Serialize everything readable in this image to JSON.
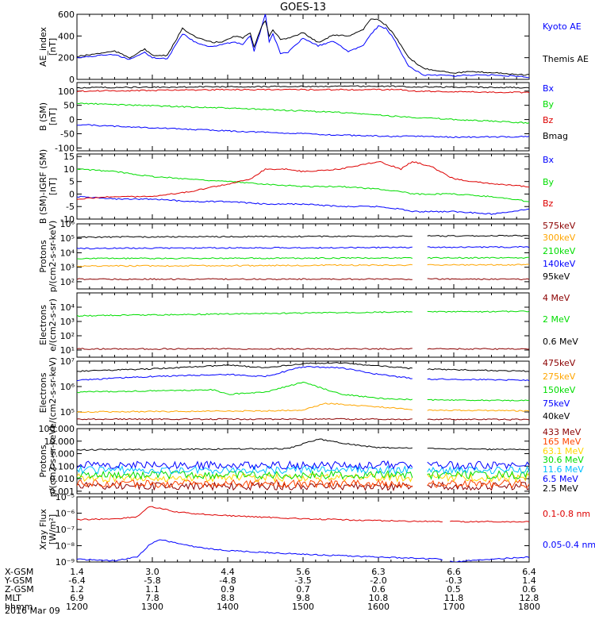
{
  "title": "GOES-13",
  "chart_data": [
    {
      "type": "line",
      "ylabel": "AE_index [nT]",
      "ylim": [
        0,
        600
      ],
      "yticks": [
        "0",
        "200",
        "400",
        "600"
      ],
      "series": [
        {
          "name": "Kyoto AE",
          "color": "#0000ff",
          "x": [
            12.0,
            12.3,
            12.5,
            12.7,
            12.9,
            13.0,
            13.2,
            13.4,
            13.6,
            13.8,
            13.95,
            14.1,
            14.2,
            14.3,
            14.35,
            14.45,
            14.5,
            14.55,
            14.6,
            14.7,
            14.8,
            15.0,
            15.2,
            15.4,
            15.6,
            15.8,
            15.9,
            16.0,
            16.1,
            16.2,
            16.4,
            16.6,
            16.8,
            17.0,
            17.2,
            17.4,
            17.6,
            17.8,
            18.0
          ],
          "values": [
            200,
            220,
            230,
            180,
            250,
            200,
            190,
            420,
            330,
            300,
            330,
            340,
            320,
            400,
            260,
            480,
            600,
            350,
            420,
            240,
            250,
            380,
            310,
            350,
            260,
            310,
            420,
            490,
            470,
            380,
            120,
            40,
            40,
            30,
            40,
            40,
            40,
            30,
            20
          ]
        },
        {
          "name": "Themis AE",
          "color": "#000000",
          "x": [
            12.0,
            12.3,
            12.5,
            12.7,
            12.9,
            13.0,
            13.2,
            13.4,
            13.6,
            13.8,
            13.95,
            14.1,
            14.2,
            14.3,
            14.35,
            14.45,
            14.5,
            14.55,
            14.6,
            14.7,
            14.8,
            15.0,
            15.2,
            15.4,
            15.6,
            15.8,
            15.9,
            16.0,
            16.1,
            16.2,
            16.4,
            16.6,
            16.8,
            17.0,
            17.2,
            17.4,
            17.6,
            17.8,
            18.0
          ],
          "values": [
            210,
            240,
            260,
            200,
            280,
            220,
            220,
            470,
            380,
            340,
            350,
            400,
            380,
            430,
            300,
            490,
            540,
            400,
            450,
            370,
            380,
            430,
            340,
            410,
            400,
            460,
            560,
            550,
            500,
            420,
            200,
            100,
            80,
            60,
            70,
            65,
            60,
            45,
            40
          ]
        }
      ]
    },
    {
      "type": "line",
      "ylabel": "B (SM) [nT]",
      "ylim": [
        -110,
        130
      ],
      "yticks": [
        "-100",
        "-50",
        "0",
        "50",
        "100"
      ],
      "series": [
        {
          "name": "Bx",
          "color": "#0000ff",
          "x": [
            12.0,
            14.0,
            15.5,
            16.3,
            16.45,
            17.0,
            18.0
          ],
          "values": [
            -18,
            -40,
            -55,
            -60,
            -58,
            -62,
            -60
          ]
        },
        {
          "name": "By",
          "color": "#00dd00",
          "x": [
            12.0,
            14.0,
            15.5,
            16.3,
            16.45,
            17.0,
            18.0
          ],
          "values": [
            57,
            40,
            25,
            10,
            8,
            0,
            -12
          ]
        },
        {
          "name": "Bz",
          "color": "#dd0000",
          "x": [
            12.0,
            14.0,
            15.5,
            16.3,
            16.45,
            17.0,
            18.0
          ],
          "values": [
            100,
            105,
            105,
            105,
            100,
            98,
            95
          ]
        },
        {
          "name": "Bmag",
          "color": "#000000",
          "x": [
            12.0,
            14.0,
            15.5,
            16.3,
            16.45,
            17.0,
            18.0
          ],
          "values": [
            112,
            115,
            117,
            117,
            115,
            114,
            112
          ]
        }
      ]
    },
    {
      "type": "line",
      "ylabel": "B (SM)-IGRF (SM) [nT]",
      "ylim": [
        -10,
        16
      ],
      "yticks": [
        "-10",
        "-5",
        "0",
        "5",
        "10",
        "15"
      ],
      "series": [
        {
          "name": "Bx",
          "color": "#0000ff",
          "x": [
            12.0,
            12.5,
            13.0,
            13.5,
            14.0,
            14.5,
            15.0,
            15.5,
            16.0,
            16.3,
            16.45,
            17.0,
            17.5,
            18.0
          ],
          "values": [
            -1,
            -2,
            -2,
            -3,
            -3,
            -4,
            -4,
            -5,
            -5,
            -6,
            -7,
            -7,
            -8,
            -6
          ]
        },
        {
          "name": "By",
          "color": "#00dd00",
          "x": [
            12.0,
            12.5,
            13.0,
            13.5,
            14.0,
            14.5,
            15.0,
            15.5,
            16.0,
            16.3,
            16.45,
            17.0,
            17.5,
            18.0
          ],
          "values": [
            10,
            9,
            7,
            6,
            5,
            4,
            3,
            3,
            2,
            1,
            0,
            0,
            -1,
            -3
          ]
        },
        {
          "name": "Bz",
          "color": "#dd0000",
          "x": [
            12.0,
            12.5,
            13.0,
            13.5,
            14.0,
            14.3,
            14.5,
            14.8,
            15.0,
            15.5,
            16.0,
            16.1,
            16.3,
            16.45,
            16.7,
            17.0,
            17.5,
            18.0
          ],
          "values": [
            -2,
            -1,
            -1,
            1,
            4,
            6,
            10,
            10,
            9,
            10,
            13,
            12,
            10,
            13,
            11,
            6,
            4,
            3
          ]
        }
      ]
    },
    {
      "type": "line",
      "ylabel": "Protons p/(cm2-s-sr-keV)",
      "scale": "log",
      "ylim_exp": [
        1.5,
        6
      ],
      "yticks": [
        "10²",
        "10³",
        "10⁴",
        "10⁵",
        "10⁶"
      ],
      "gaps": [
        [
          16.45,
          16.65
        ]
      ],
      "series": [
        {
          "name": "575keV",
          "color": "#8b0000",
          "x": [
            12.0,
            18.0
          ],
          "values": [
            150,
            150
          ]
        },
        {
          "name": "300keV",
          "color": "#ffa500",
          "x": [
            12.0,
            18.0
          ],
          "values": [
            1200,
            1500
          ]
        },
        {
          "name": "210keV",
          "color": "#00dd00",
          "x": [
            12.0,
            18.0
          ],
          "values": [
            4000,
            4500
          ]
        },
        {
          "name": "140keV",
          "color": "#0000ff",
          "x": [
            12.0,
            18.0
          ],
          "values": [
            20000,
            25000
          ]
        },
        {
          "name": "95keV",
          "color": "#000000",
          "x": [
            12.0,
            18.0
          ],
          "values": [
            120000,
            150000
          ]
        }
      ]
    },
    {
      "type": "line",
      "ylabel": "Electrons e/(cm2-s-sr)",
      "scale": "log",
      "ylim_exp": [
        0.5,
        5
      ],
      "yticks": [
        "10¹",
        "10²",
        "10³",
        "10⁴"
      ],
      "gaps": [
        [
          16.45,
          16.65
        ]
      ],
      "series": [
        {
          "name": "4 MeV",
          "color": "#8b0000",
          "x": [
            12.0,
            18.0
          ],
          "values": [
            12,
            12
          ]
        },
        {
          "name": "2 MeV",
          "color": "#00dd00",
          "x": [
            12.0,
            16.0,
            18.0
          ],
          "values": [
            2500,
            4500,
            5000
          ]
        },
        {
          "name": "0.6 MeV",
          "color": "#000000",
          "x": [
            12.0,
            18.0
          ],
          "values": [
            110000,
            110000
          ]
        }
      ]
    },
    {
      "type": "line",
      "ylabel": "Electrons e/(cm2-s-sr-keV)",
      "scale": "log",
      "ylim_exp": [
        4.5,
        7
      ],
      "yticks": [
        "10⁵",
        "10⁶",
        "10⁷"
      ],
      "gaps": [
        [
          16.45,
          16.65
        ]
      ],
      "series": [
        {
          "name": "475keV",
          "color": "#8b0000",
          "x": [
            12.0,
            16.0,
            18.0
          ],
          "values": [
            52000,
            52000,
            50000
          ]
        },
        {
          "name": "275keV",
          "color": "#ffa500",
          "x": [
            12.0,
            14.5,
            15.0,
            15.3,
            16.0,
            16.5,
            18.0
          ],
          "values": [
            100000,
            110000,
            120000,
            220000,
            160000,
            120000,
            110000
          ]
        },
        {
          "name": "150keV",
          "color": "#00dd00",
          "x": [
            12.0,
            13.8,
            14.0,
            14.5,
            15.0,
            15.5,
            16.0,
            16.5,
            18.0
          ],
          "values": [
            600000,
            750000,
            500000,
            600000,
            1500000,
            500000,
            350000,
            300000,
            280000
          ]
        },
        {
          "name": "75keV",
          "color": "#0000ff",
          "x": [
            12.0,
            13.0,
            14.0,
            14.5,
            15.0,
            15.5,
            16.0,
            16.5,
            18.0
          ],
          "values": [
            1800000,
            2500000,
            3000000,
            2500000,
            6000000,
            5500000,
            3000000,
            2000000,
            1800000
          ]
        },
        {
          "name": "40keV",
          "color": "#000000",
          "x": [
            12.0,
            13.0,
            14.0,
            14.5,
            15.0,
            15.5,
            16.0,
            16.5,
            18.0
          ],
          "values": [
            4000000,
            5000000,
            7000000,
            5500000,
            8000000,
            8500000,
            6500000,
            5000000,
            4000000
          ]
        }
      ]
    },
    {
      "type": "line",
      "ylabel": "Protons p/(cm2-s-sr-keV)",
      "scale": "log",
      "ylim_exp": [
        -3.2,
        2
      ],
      "yticks": [
        "0.001",
        "0.010",
        "0.100",
        "1.000",
        "10.000",
        "100.000"
      ],
      "gaps": [
        [
          16.45,
          16.65
        ]
      ],
      "series": [
        {
          "name": "433 MeV",
          "color": "#8b0000",
          "x": [
            12.0,
            18.0
          ],
          "values": [
            0.0025,
            0.0025
          ]
        },
        {
          "name": "165 MeV",
          "color": "#ff4500",
          "x": [
            12.0,
            18.0
          ],
          "values": [
            0.004,
            0.004
          ]
        },
        {
          "name": "63.1 MeV",
          "color": "#ffd700",
          "x": [
            12.0,
            18.0
          ],
          "values": [
            0.012,
            0.012
          ]
        },
        {
          "name": "30.6 MeV",
          "color": "#00dd00",
          "x": [
            12.0,
            18.0
          ],
          "values": [
            0.02,
            0.02
          ]
        },
        {
          "name": "11.6 MeV",
          "color": "#00bfff",
          "x": [
            12.0,
            18.0
          ],
          "values": [
            0.05,
            0.05
          ]
        },
        {
          "name": "6.5 MeV",
          "color": "#0000ff",
          "x": [
            12.0,
            18.0
          ],
          "values": [
            0.12,
            0.12
          ]
        },
        {
          "name": "2.5 MeV",
          "color": "#000000",
          "x": [
            12.0,
            14.8,
            15.0,
            15.2,
            15.6,
            16.0,
            18.0
          ],
          "values": [
            2.0,
            2.5,
            6.0,
            15.0,
            6.0,
            3.0,
            2.0
          ]
        }
      ]
    },
    {
      "type": "line",
      "ylabel": "Xray Flux [W/m²]",
      "scale": "log",
      "ylim_exp": [
        -9,
        -5
      ],
      "yticks": [
        "10⁻⁹",
        "10⁻⁸",
        "10⁻⁷",
        "10⁻⁶",
        "10⁻⁵"
      ],
      "gaps": [
        [
          16.85,
          16.95
        ]
      ],
      "series": [
        {
          "name": "0.1-0.8 nm",
          "color": "#dd0000",
          "x": [
            12.0,
            12.5,
            12.8,
            12.95,
            13.1,
            13.3,
            13.6,
            14.0,
            15.0,
            16.0,
            16.8,
            17.0,
            18.0
          ],
          "values": [
            4e-07,
            4.5e-07,
            6e-07,
            2.5e-06,
            2e-06,
            1.2e-06,
            9e-07,
            7e-07,
            4.5e-07,
            3.5e-07,
            3e-07,
            3e-07,
            3e-07
          ]
        },
        {
          "name": "0.05-0.4 nm",
          "color": "#0000ff",
          "x": [
            12.0,
            12.5,
            12.8,
            12.95,
            13.1,
            13.3,
            13.6,
            14.0,
            15.0,
            16.0,
            16.8,
            17.0,
            17.5,
            18.0
          ],
          "values": [
            1.5e-09,
            1.2e-09,
            2e-09,
            1e-08,
            2.5e-08,
            1.5e-08,
            8e-09,
            5e-09,
            3e-09,
            2e-09,
            1.5e-09,
            1e-09,
            1.5e-09,
            2e-09
          ]
        }
      ]
    }
  ],
  "xaxis": {
    "hhmm": [
      "1200",
      "1300",
      "1400",
      "1500",
      "1600",
      "1700",
      "1800"
    ],
    "date": "2016 Mar 09",
    "rows": [
      {
        "label": "X-GSM",
        "values": [
          "1.4",
          "3.0",
          "4.4",
          "5.6",
          "6.3",
          "6.6",
          "6.4"
        ]
      },
      {
        "label": "Y-GSM",
        "values": [
          "-6.4",
          "-5.8",
          "-4.8",
          "-3.5",
          "-2.0",
          "-0.3",
          "1.4"
        ]
      },
      {
        "label": "Z-GSM",
        "values": [
          "1.2",
          "1.1",
          "0.9",
          "0.7",
          "0.6",
          "0.5",
          "0.6"
        ]
      },
      {
        "label": "MLT",
        "values": [
          "6.9",
          "7.8",
          "8.8",
          "9.8",
          "10.8",
          "11.8",
          "12.8"
        ]
      },
      {
        "label": "hhmm",
        "values": [
          "1200",
          "1300",
          "1400",
          "1500",
          "1600",
          "1700",
          "1800"
        ]
      }
    ]
  }
}
